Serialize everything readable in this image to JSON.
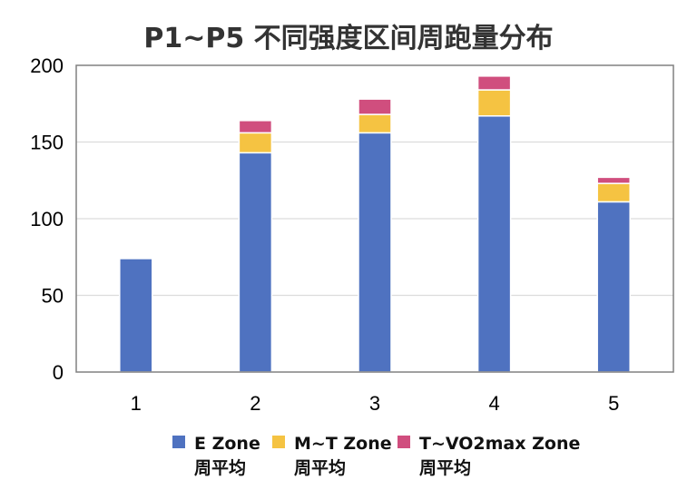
{
  "chart_data": {
    "type": "bar",
    "stacked": true,
    "title": "P1~P5 不同强度区间周跑量分布",
    "xlabel": "",
    "ylabel": "",
    "categories": [
      "1",
      "2",
      "3",
      "4",
      "5"
    ],
    "ylim": [
      0,
      200
    ],
    "yticks": [
      "0",
      "50",
      "100",
      "150",
      "200"
    ],
    "grid": true,
    "legend_position": "bottom",
    "series": [
      {
        "name_line1": "E Zone",
        "name_line2": "周平均",
        "color": "#4f72c0",
        "values": [
          74,
          143,
          156,
          167,
          111
        ]
      },
      {
        "name_line1": "M~T Zone",
        "name_line2": "周平均",
        "color": "#f5c342",
        "values": [
          0,
          13,
          12,
          17,
          12
        ]
      },
      {
        "name_line1": "T~VO2max Zone",
        "name_line2": "周平均",
        "color": "#d04e7e",
        "values": [
          0,
          8,
          10,
          9,
          4
        ]
      }
    ]
  }
}
